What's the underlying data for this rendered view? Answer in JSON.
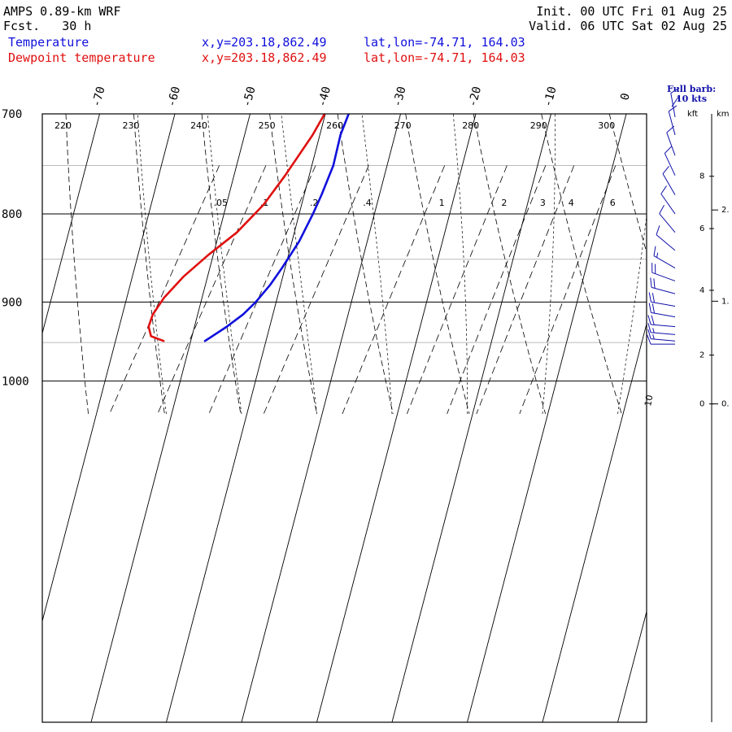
{
  "header": {
    "model_line": "AMPS 0.89-km WRF",
    "fcst_label": "Fcst.",
    "fcst_value": "30 h",
    "init_line": "Init. 00 UTC Fri 01 Aug 25",
    "valid_line": "Valid. 06 UTC Sat 02 Aug 25",
    "temperature_label": "Temperature",
    "dewpoint_label": "Dewpoint temperature",
    "temperature_xy": "x,y=203.18,862.49",
    "temperature_latlon": "lat,lon=-74.71, 164.03",
    "dewpoint_xy": "x,y=203.18,862.49",
    "dewpoint_latlon": "lat,lon=-74.71, 164.03"
  },
  "colors": {
    "temperature": "#1010dd",
    "dewpoint": "#e01010",
    "wind_barbs": "#1010aa",
    "frame": "#000000",
    "pressure_minor_grid": "#bbbbbb"
  },
  "barb_legend": {
    "title": "Full barb:",
    "value": "10 kts"
  },
  "height_axis": {
    "kft_label": "kft",
    "km_label": "km",
    "kft_ticks": [
      "8",
      "6",
      "4",
      "2",
      "0"
    ],
    "km_ticks": [
      "2.",
      "1.",
      "0."
    ]
  },
  "chart_data": {
    "type": "line",
    "subtype": "skew-T log-P sounding",
    "y_axis": {
      "label": "",
      "unit": "hPa",
      "scale": "log",
      "reversed": true,
      "range": [
        700,
        1045
      ],
      "ticks": [
        700,
        800,
        900,
        1000
      ],
      "minor_ticks": [
        750,
        850,
        950
      ]
    },
    "isotherm_ticks_c": [
      -70,
      -60,
      -50,
      -40,
      -30,
      -20,
      -10,
      0
    ],
    "dry_adiabat_labels_k": [
      220,
      230,
      240,
      250,
      260,
      270,
      280,
      290,
      300
    ],
    "mixing_ratio_labels_gkg": [
      ".05",
      ".1",
      ".2",
      ".4",
      "1",
      "2",
      "3",
      "4",
      "6"
    ],
    "series": [
      {
        "name": "Temperature",
        "points": [
          {
            "p": 700,
            "t": -36.9
          },
          {
            "p": 720,
            "t": -36.5
          },
          {
            "p": 750,
            "t": -35.3
          },
          {
            "p": 780,
            "t": -34.8
          },
          {
            "p": 800,
            "t": -34.6
          },
          {
            "p": 830,
            "t": -34.5
          },
          {
            "p": 860,
            "t": -34.9
          },
          {
            "p": 880,
            "t": -35.3
          },
          {
            "p": 900,
            "t": -36.0
          },
          {
            "p": 915,
            "t": -36.8
          },
          {
            "p": 930,
            "t": -38.1
          },
          {
            "p": 948,
            "t": -40.0
          }
        ]
      },
      {
        "name": "Dewpoint temperature",
        "points": [
          {
            "p": 700,
            "t": -40.1
          },
          {
            "p": 720,
            "t": -40.2
          },
          {
            "p": 760,
            "t": -41.0
          },
          {
            "p": 790,
            "t": -41.8
          },
          {
            "p": 820,
            "t": -43.4
          },
          {
            "p": 845,
            "t": -45.6
          },
          {
            "p": 870,
            "t": -47.4
          },
          {
            "p": 895,
            "t": -48.5
          },
          {
            "p": 915,
            "t": -48.8
          },
          {
            "p": 930,
            "t": -48.5
          },
          {
            "p": 942,
            "t": -47.5
          },
          {
            "p": 948,
            "t": -45.5
          }
        ]
      }
    ],
    "wind_profile": {
      "unit": "kt",
      "levels": [
        {
          "p": 703,
          "wdir": 350,
          "wspd": 10
        },
        {
          "p": 720,
          "wdir": 345,
          "wspd": 12
        },
        {
          "p": 740,
          "wdir": 340,
          "wspd": 14
        },
        {
          "p": 760,
          "wdir": 335,
          "wspd": 14
        },
        {
          "p": 780,
          "wdir": 330,
          "wspd": 12
        },
        {
          "p": 800,
          "wdir": 325,
          "wspd": 12
        },
        {
          "p": 820,
          "wdir": 320,
          "wspd": 12
        },
        {
          "p": 840,
          "wdir": 310,
          "wspd": 14
        },
        {
          "p": 860,
          "wdir": 300,
          "wspd": 18
        },
        {
          "p": 875,
          "wdir": 290,
          "wspd": 20
        },
        {
          "p": 890,
          "wdir": 285,
          "wspd": 20
        },
        {
          "p": 905,
          "wdir": 280,
          "wspd": 20
        },
        {
          "p": 918,
          "wdir": 280,
          "wspd": 20
        },
        {
          "p": 930,
          "wdir": 275,
          "wspd": 20
        },
        {
          "p": 940,
          "wdir": 275,
          "wspd": 18
        },
        {
          "p": 948,
          "wdir": 275,
          "wspd": 15
        },
        {
          "p": 952,
          "wdir": 270,
          "wspd": 12
        }
      ],
      "barb_label": "10"
    }
  }
}
